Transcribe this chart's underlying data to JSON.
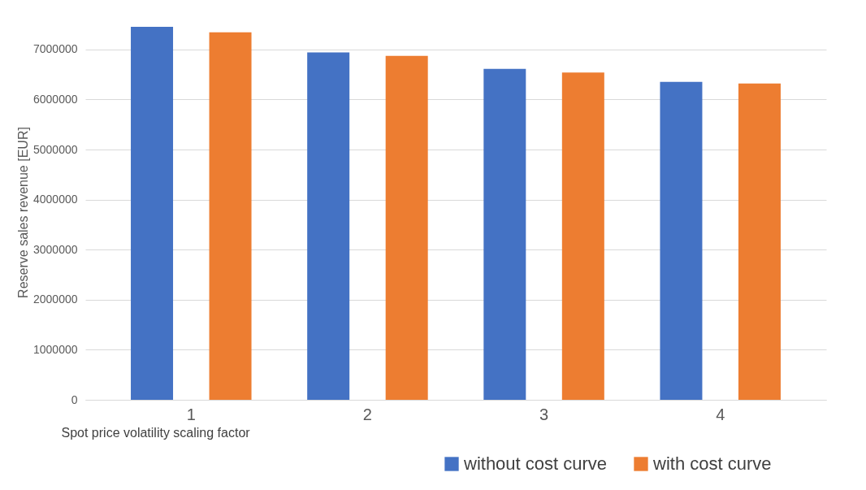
{
  "chart_data": {
    "type": "bar",
    "xlabel": "Spot price volatility scaling factor",
    "ylabel": "Reserve sales revenue [EUR]",
    "categories": [
      "1",
      "2",
      "3",
      "4"
    ],
    "series": [
      {
        "name": "without cost curve",
        "color": "#4472c4",
        "values": [
          7450000,
          6940000,
          6610000,
          6350000
        ]
      },
      {
        "name": "with cost curve",
        "color": "#ed7d31",
        "values": [
          7340000,
          6870000,
          6540000,
          6320000
        ]
      }
    ],
    "ylim": [
      0,
      7500000
    ],
    "yticks": [
      0,
      1000000,
      2000000,
      3000000,
      4000000,
      5000000,
      6000000,
      7000000
    ],
    "grid": "y",
    "legend": "bottom right"
  }
}
